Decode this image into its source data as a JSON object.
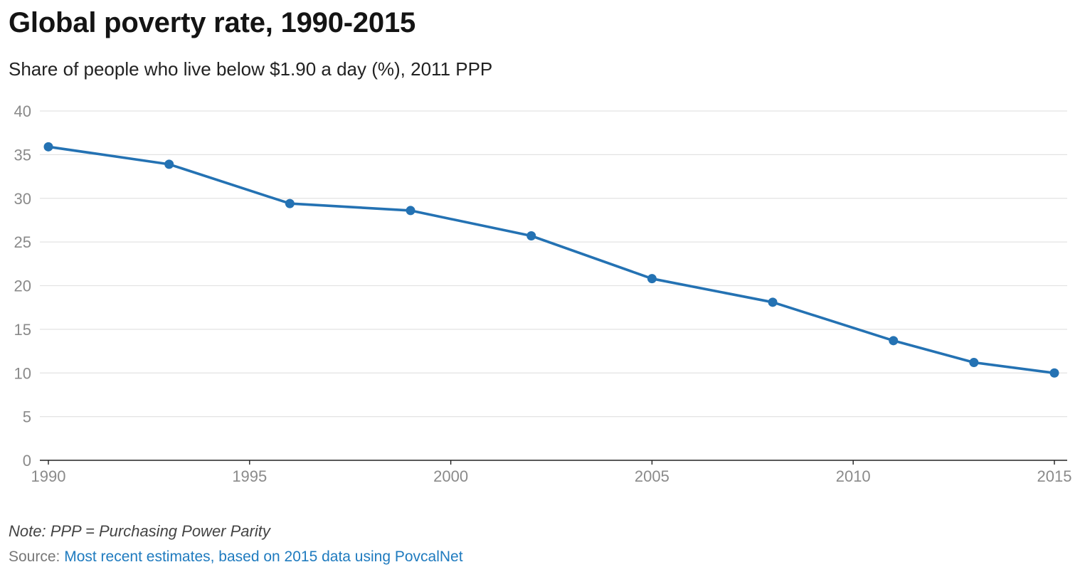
{
  "chart_data": {
    "type": "line",
    "title": "Global poverty rate, 1990-2015",
    "subtitle": "Share of people who live below $1.90 a day (%), 2011 PPP",
    "xlabel": "",
    "ylabel": "",
    "xlim": [
      1990,
      2015
    ],
    "ylim": [
      0,
      40
    ],
    "x_ticks": [
      "1990",
      "1995",
      "2000",
      "2005",
      "2010",
      "2015"
    ],
    "y_ticks": [
      "0",
      "5",
      "10",
      "15",
      "20",
      "25",
      "30",
      "35",
      "40"
    ],
    "grid": true,
    "legend": "none",
    "color": "#2472b3",
    "x": [
      1990,
      1993,
      1996,
      1999,
      2002,
      2005,
      2008,
      2011,
      2013,
      2015
    ],
    "y": [
      35.9,
      33.9,
      29.4,
      28.6,
      25.7,
      20.8,
      18.1,
      13.7,
      11.2,
      10.0
    ]
  },
  "footer": {
    "note": "Note: PPP = Purchasing Power Parity",
    "source_label": "Source:",
    "source_link": "Most recent estimates, based on 2015 data using PovcalNet"
  }
}
